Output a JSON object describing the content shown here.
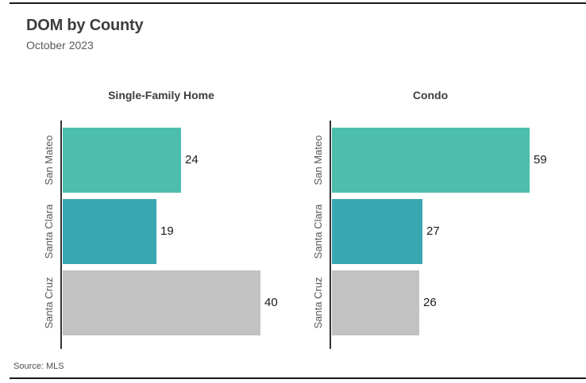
{
  "header": {
    "title": "DOM by County",
    "subtitle": "October 2023"
  },
  "footer": {
    "source": "Source: MLS"
  },
  "colors": {
    "bar_san_mateo": "#4DBEAD",
    "bar_santa_clara": "#39A7B2",
    "bar_santa_cruz": "#C2C2C2",
    "axis_line": "#333333",
    "title_text": "#3d3d3d",
    "muted_text": "#595959",
    "value_text": "#1a1a1a",
    "divider": "#1a1a1a"
  },
  "chart_data": {
    "type": "bar",
    "orientation": "horizontal",
    "title": "DOM by County",
    "subtitle": "October 2023",
    "categories": [
      "San Mateo",
      "Santa Clara",
      "Santa Cruz"
    ],
    "series": [
      {
        "name": "Single-Family Home",
        "values": [
          24,
          19,
          40
        ]
      },
      {
        "name": "Condo",
        "values": [
          59,
          27,
          26
        ]
      }
    ],
    "bar_colors": [
      "#4DBEAD",
      "#39A7B2",
      "#C2C2C2"
    ],
    "value_labels_shown": true,
    "grid": false,
    "legend": "none",
    "x_axis": "hidden, each panel independently scaled with ~10% headroom above max",
    "source": "Source: MLS"
  }
}
